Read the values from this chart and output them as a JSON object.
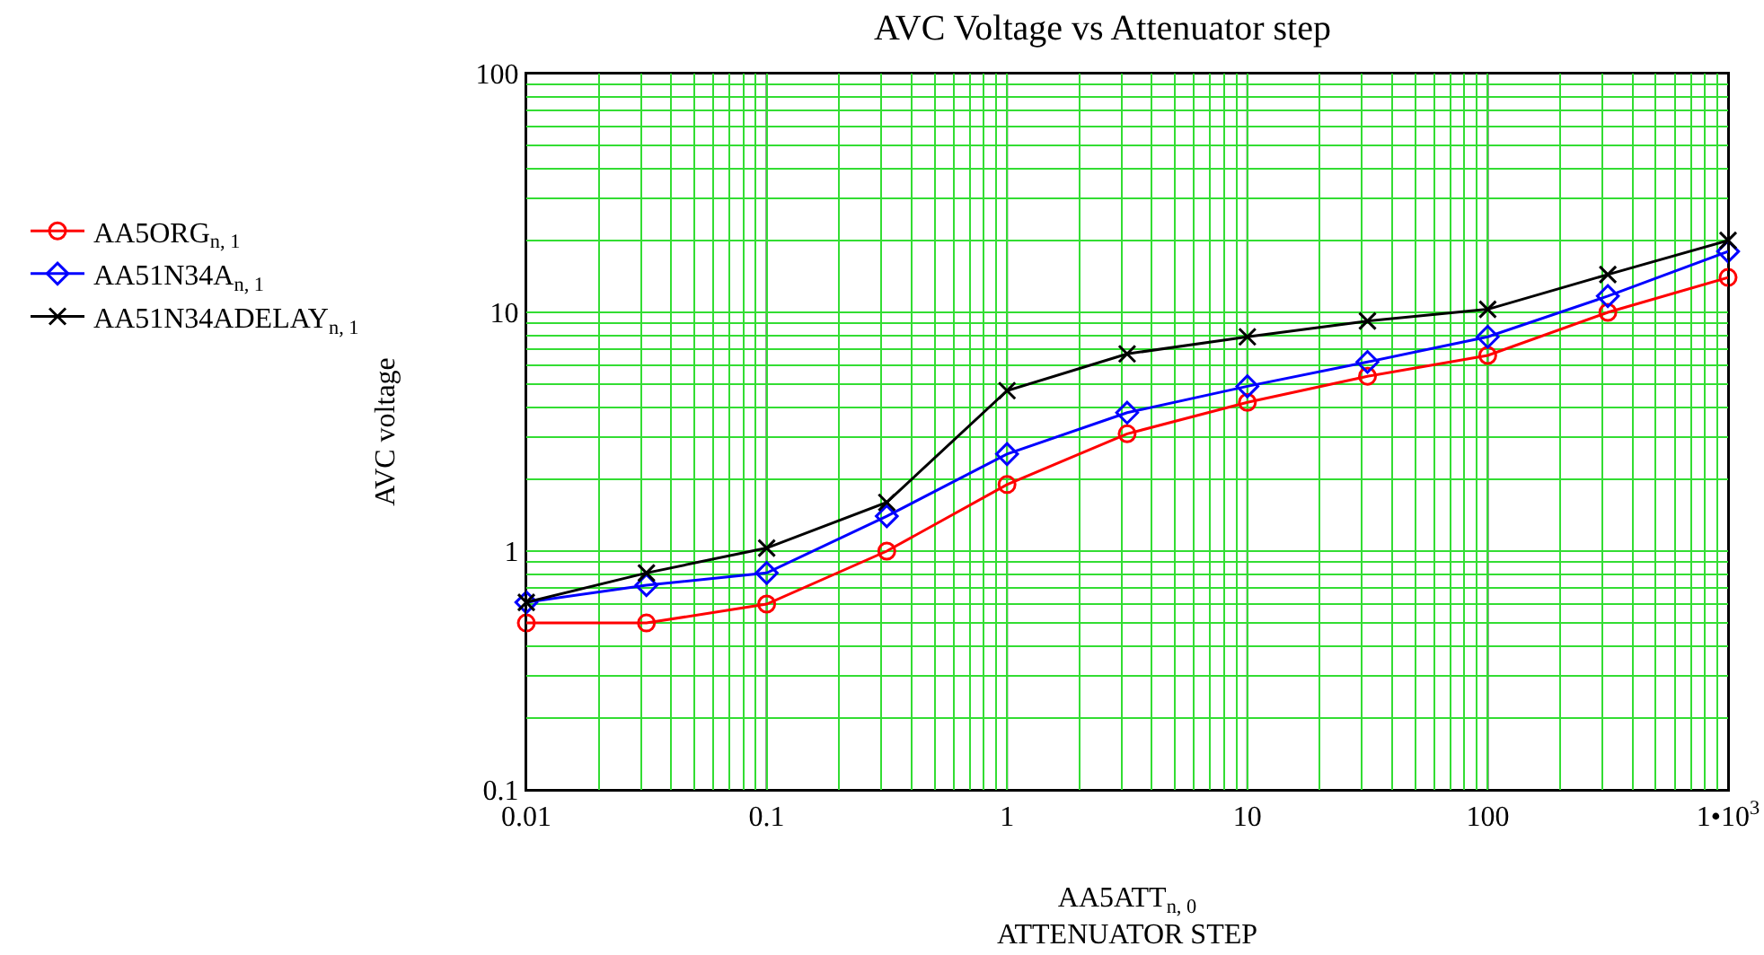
{
  "chart_data": {
    "type": "line",
    "title": "AVC Voltage vs Attenuator step",
    "xlabel": "AA5ATT$_{n, 0}$\nATTENUATOR STEP",
    "ylabel": "AVC voltage",
    "x": [
      0.01,
      0.0316,
      0.1,
      0.316,
      1,
      3.16,
      10,
      31.6,
      100,
      316,
      1000
    ],
    "series": [
      {
        "name": "AA5ORG$_{n, 1}$",
        "color": "#ff0000",
        "marker": "circle",
        "values": [
          0.5,
          0.5,
          0.6,
          1.0,
          1.9,
          3.1,
          4.2,
          5.4,
          6.6,
          10,
          14
        ]
      },
      {
        "name": "AA51N34A$_{n, 1}$",
        "color": "#0000ff",
        "marker": "diamond",
        "values": [
          0.61,
          0.72,
          0.81,
          1.4,
          2.55,
          3.8,
          4.9,
          6.2,
          7.9,
          11.7,
          18
        ]
      },
      {
        "name": "AA51N34ADELAY$_{n, 1}$",
        "color": "#000000",
        "marker": "cross",
        "values": [
          0.61,
          0.81,
          1.03,
          1.6,
          4.7,
          6.7,
          7.9,
          9.2,
          10.3,
          14.4,
          20
        ]
      }
    ],
    "log": "xy",
    "xlim": [
      0.01,
      1000
    ],
    "ylim": [
      0.1,
      100
    ],
    "xticks": [
      0.01,
      {
        "value": 0.02,
        "label": null
      },
      {
        "value": 0.03,
        "label": null
      },
      {
        "value": 0.04,
        "label": null
      },
      {
        "value": 0.05,
        "label": null
      },
      {
        "value": 0.06,
        "label": null
      },
      {
        "value": 0.07,
        "label": null
      },
      {
        "value": 0.08,
        "label": null
      },
      {
        "value": 0.09,
        "label": null
      },
      0.1,
      {
        "value": 0.2,
        "label": null
      },
      {
        "value": 0.3,
        "label": null
      },
      {
        "value": 0.4,
        "label": null
      },
      {
        "value": 0.5,
        "label": null
      },
      {
        "value": 0.6,
        "label": null
      },
      {
        "value": 0.7,
        "label": null
      },
      {
        "value": 0.8,
        "label": null
      },
      {
        "value": 0.9,
        "label": null
      },
      1,
      {
        "value": 2,
        "label": null
      },
      {
        "value": 3,
        "label": null
      },
      {
        "value": 4,
        "label": null
      },
      {
        "value": 5,
        "label": null
      },
      {
        "value": 6,
        "label": null
      },
      {
        "value": 7,
        "label": null
      },
      {
        "value": 8,
        "label": null
      },
      {
        "value": 9,
        "label": null
      },
      10,
      {
        "value": 20,
        "label": null
      },
      {
        "value": 30,
        "label": null
      },
      {
        "value": 40,
        "label": null
      },
      {
        "value": 50,
        "label": null
      },
      {
        "value": 60,
        "label": null
      },
      {
        "value": 70,
        "label": null
      },
      {
        "value": 80,
        "label": null
      },
      {
        "value": 90,
        "label": null
      },
      100,
      {
        "value": 200,
        "label": null
      },
      {
        "value": 300,
        "label": null
      },
      {
        "value": 400,
        "label": null
      },
      {
        "value": 500,
        "label": null
      },
      {
        "value": 600,
        "label": null
      },
      {
        "value": 700,
        "label": null
      },
      {
        "value": 800,
        "label": null
      },
      {
        "value": 900,
        "label": null
      },
      {
        "value": 1000,
        "label": "1•10$^{3}$"
      }
    ],
    "yticks": [
      0.1,
      {
        "value": 0.2,
        "label": null
      },
      {
        "value": 0.3,
        "label": null
      },
      {
        "value": 0.4,
        "label": null
      },
      {
        "value": 0.5,
        "label": null
      },
      {
        "value": 0.6,
        "label": null
      },
      {
        "value": 0.7,
        "label": null
      },
      {
        "value": 0.8,
        "label": null
      },
      {
        "value": 0.9,
        "label": null
      },
      1,
      {
        "value": 2,
        "label": null
      },
      {
        "value": 3,
        "label": null
      },
      {
        "value": 4,
        "label": null
      },
      {
        "value": 5,
        "label": null
      },
      {
        "value": 6,
        "label": null
      },
      {
        "value": 7,
        "label": null
      },
      {
        "value": 8,
        "label": null
      },
      {
        "value": 9,
        "label": null
      },
      10,
      {
        "value": 20,
        "label": null
      },
      {
        "value": 30,
        "label": null
      },
      {
        "value": 40,
        "label": null
      },
      {
        "value": 50,
        "label": null
      },
      {
        "value": 60,
        "label": null
      },
      {
        "value": 70,
        "label": null
      },
      {
        "value": 80,
        "label": null
      },
      {
        "value": 90,
        "label": null
      },
      100
    ],
    "grid": true,
    "legend": "left",
    "line_style": "solid"
  }
}
